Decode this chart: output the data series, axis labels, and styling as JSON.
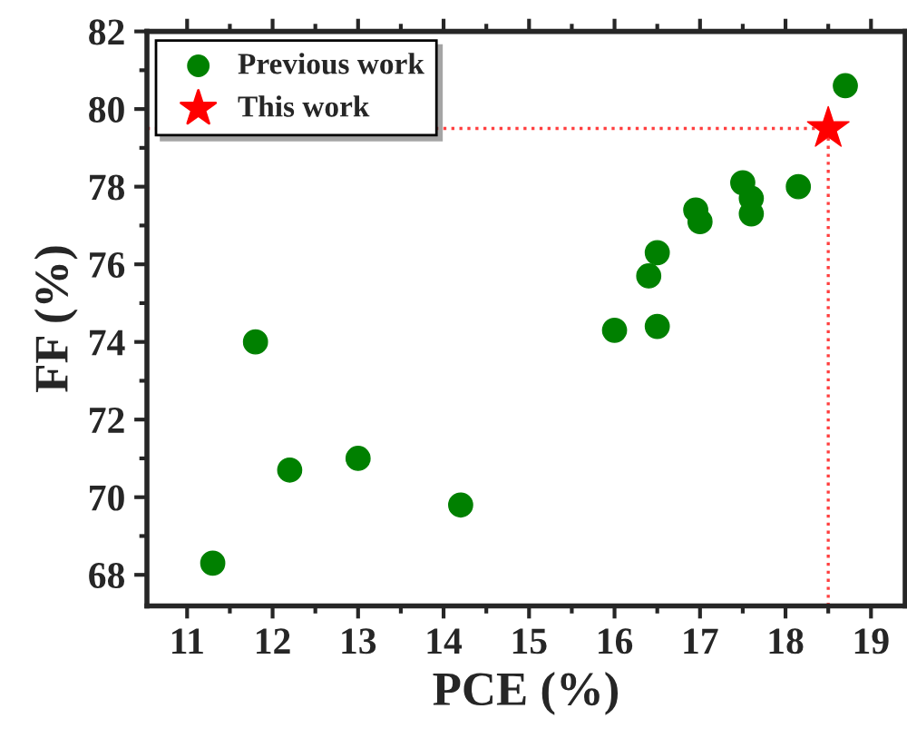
{
  "chart_data": {
    "type": "scatter",
    "xlabel": "PCE (%)",
    "ylabel": "FF (%)",
    "xlim": [
      10.53,
      19.4
    ],
    "ylim": [
      67.2,
      82
    ],
    "xticks": [
      11,
      12,
      13,
      14,
      15,
      16,
      17,
      18,
      19
    ],
    "yticks": [
      68,
      70,
      72,
      74,
      76,
      78,
      80,
      82
    ],
    "grid": false,
    "legend": "top left",
    "series": [
      {
        "name": "Previous work",
        "color": "#008000",
        "marker": "circle",
        "x": [
          11.3,
          11.8,
          12.2,
          13.0,
          14.2,
          16.0,
          16.5,
          16.4,
          16.5,
          16.95,
          17.0,
          17.5,
          17.6,
          17.6,
          18.15,
          18.7
        ],
        "values": [
          68.3,
          74.0,
          70.7,
          71.0,
          69.8,
          74.3,
          74.4,
          75.7,
          76.3,
          77.4,
          77.1,
          78.1,
          77.7,
          77.3,
          78.0,
          80.6
        ]
      },
      {
        "name": "This work",
        "color": "#ff0000",
        "marker": "star",
        "x": [
          18.5
        ],
        "values": [
          79.5
        ]
      }
    ],
    "ref_lines": [
      {
        "axis": "x",
        "value": 18.5,
        "color": "#ff4040",
        "line_style": "dotted"
      },
      {
        "axis": "y",
        "value": 79.5,
        "color": "#ff4040",
        "line_style": "dotted"
      }
    ]
  }
}
